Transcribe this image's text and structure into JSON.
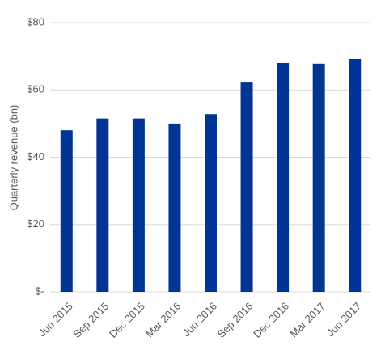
{
  "chart_data": {
    "type": "bar",
    "y_label": "Quarterly revenue (bn)",
    "categories": [
      "Jun 2015",
      "Sep 2015",
      "Dec 2015",
      "Mar 2016",
      "Jun 2016",
      "Sep 2016",
      "Dec 2016",
      "Mar 2017",
      "Jun 2017"
    ],
    "values": [
      48,
      51.5,
      51.5,
      50,
      52.8,
      62.2,
      68,
      67.8,
      69.2
    ],
    "color": "#003594",
    "ylim": [
      0,
      80
    ],
    "yticks": [
      {
        "value": 0,
        "label": "$-"
      },
      {
        "value": 20,
        "label": "$20"
      },
      {
        "value": 40,
        "label": "$40"
      },
      {
        "value": 60,
        "label": "$60"
      },
      {
        "value": 80,
        "label": "$80"
      }
    ],
    "grid": true
  }
}
